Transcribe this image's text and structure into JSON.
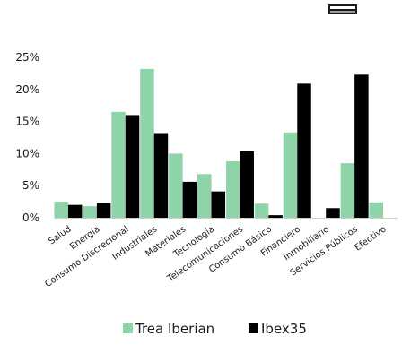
{
  "chart_data": {
    "type": "bar",
    "title": "",
    "xlabel": "",
    "ylabel": "",
    "ylim": [
      0,
      25
    ],
    "yticks": [
      "0%",
      "5%",
      "10%",
      "15%",
      "20%",
      "25%"
    ],
    "ytick_values": [
      0,
      5,
      10,
      15,
      20,
      25
    ],
    "grid": false,
    "legend_position": "bottom",
    "categories": [
      "Salud",
      "Energía",
      "Consumo Discrecional",
      "Industriales",
      "Materiales",
      "Tecnología",
      "Telecomunicaciones",
      "Consumo Básico",
      "Financiero",
      "Inmobiliario",
      "Servicios Públicos",
      "Efectivo"
    ],
    "series": [
      {
        "name": "Trea Iberian",
        "color": "#8fd3a8",
        "values": [
          2.5,
          1.8,
          16.5,
          23.2,
          10.0,
          6.8,
          8.8,
          2.2,
          13.3,
          0.0,
          8.5,
          2.4
        ]
      },
      {
        "name": "Ibex35",
        "color": "#000000",
        "values": [
          2.0,
          2.3,
          16.0,
          13.2,
          5.6,
          4.1,
          10.4,
          0.4,
          20.9,
          1.5,
          22.3,
          0.0
        ]
      }
    ]
  },
  "logo": {
    "icon": "brand-logo-icon",
    "color": "#1a1a1a"
  }
}
